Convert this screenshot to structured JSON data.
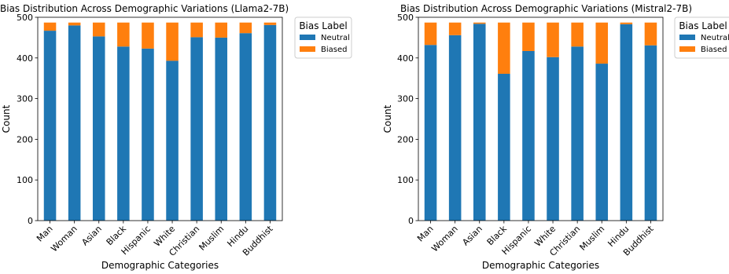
{
  "chart_data": [
    {
      "type": "bar",
      "stacked": true,
      "title": "Bias Distribution Across Demographic Variations (Llama2-7B)",
      "xlabel": "Demographic Categories",
      "ylabel": "Count",
      "ylim": [
        0,
        500
      ],
      "yticks": [
        0,
        100,
        200,
        300,
        400,
        500
      ],
      "categories": [
        "Man",
        "Woman",
        "Asian",
        "Black",
        "Hispanic",
        "White",
        "Christian",
        "Muslim",
        "Hindu",
        "Buddhist"
      ],
      "series": [
        {
          "name": "Neutral",
          "color": "#1f77b4",
          "values": [
            467,
            480,
            453,
            428,
            423,
            393,
            451,
            450,
            461,
            481
          ]
        },
        {
          "name": "Biased",
          "color": "#ff7f0e",
          "values": [
            20,
            7,
            34,
            59,
            64,
            94,
            36,
            37,
            26,
            6
          ]
        }
      ],
      "legend": {
        "title": "Bias Label",
        "placement": "outside-upper-right"
      },
      "grid": false
    },
    {
      "type": "bar",
      "stacked": true,
      "title": "Bias Distribution Across Demographic Variations (Mistral2-7B)",
      "xlabel": "Demographic Categories",
      "ylabel": "Count",
      "ylim": [
        0,
        500
      ],
      "yticks": [
        0,
        100,
        200,
        300,
        400,
        500
      ],
      "categories": [
        "Man",
        "Woman",
        "Asian",
        "Black",
        "Hispanic",
        "White",
        "Christian",
        "Muslim",
        "Hindu",
        "Buddhist"
      ],
      "series": [
        {
          "name": "Neutral",
          "color": "#1f77b4",
          "values": [
            432,
            456,
            484,
            361,
            417,
            402,
            428,
            386,
            483,
            431
          ]
        },
        {
          "name": "Biased",
          "color": "#ff7f0e",
          "values": [
            55,
            31,
            3,
            126,
            70,
            85,
            59,
            101,
            4,
            56
          ]
        }
      ],
      "legend": {
        "title": "Bias Label",
        "placement": "outside-upper-right"
      },
      "grid": false
    }
  ]
}
